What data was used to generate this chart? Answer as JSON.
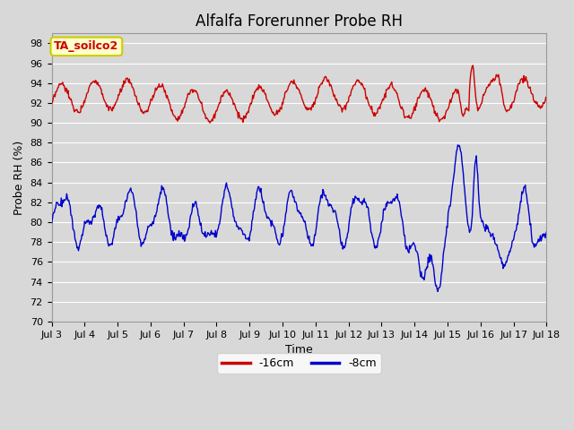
{
  "title": "Alfalfa Forerunner Probe RH",
  "ylabel": "Probe RH (%)",
  "xlabel": "Time",
  "ylim": [
    70,
    99
  ],
  "yticks": [
    70,
    72,
    74,
    76,
    78,
    80,
    82,
    84,
    86,
    88,
    90,
    92,
    94,
    96,
    98
  ],
  "legend_label1": "-16cm",
  "legend_label2": "-8cm",
  "color1": "#cc0000",
  "color2": "#0000cc",
  "bg_color": "#d8d8d8",
  "plot_bg_color": "#d8d8d8",
  "annotation_text": "TA_soilco2",
  "annotation_bg": "#ffffcc",
  "annotation_border": "#cccc00",
  "xtick_labels": [
    "Jul 3",
    "Jul 4",
    "Jul 5",
    "Jul 6",
    "Jul 7",
    "Jul 8",
    "Jul 9",
    "Jul 10",
    "Jul 11",
    "Jul 12",
    "Jul 13",
    "Jul 14",
    "Jul 15",
    "Jul 16",
    "Jul 17",
    "Jul 18"
  ],
  "num_days": 15,
  "title_fontsize": 12,
  "axis_fontsize": 9,
  "tick_fontsize": 8,
  "linewidth": 1.0
}
